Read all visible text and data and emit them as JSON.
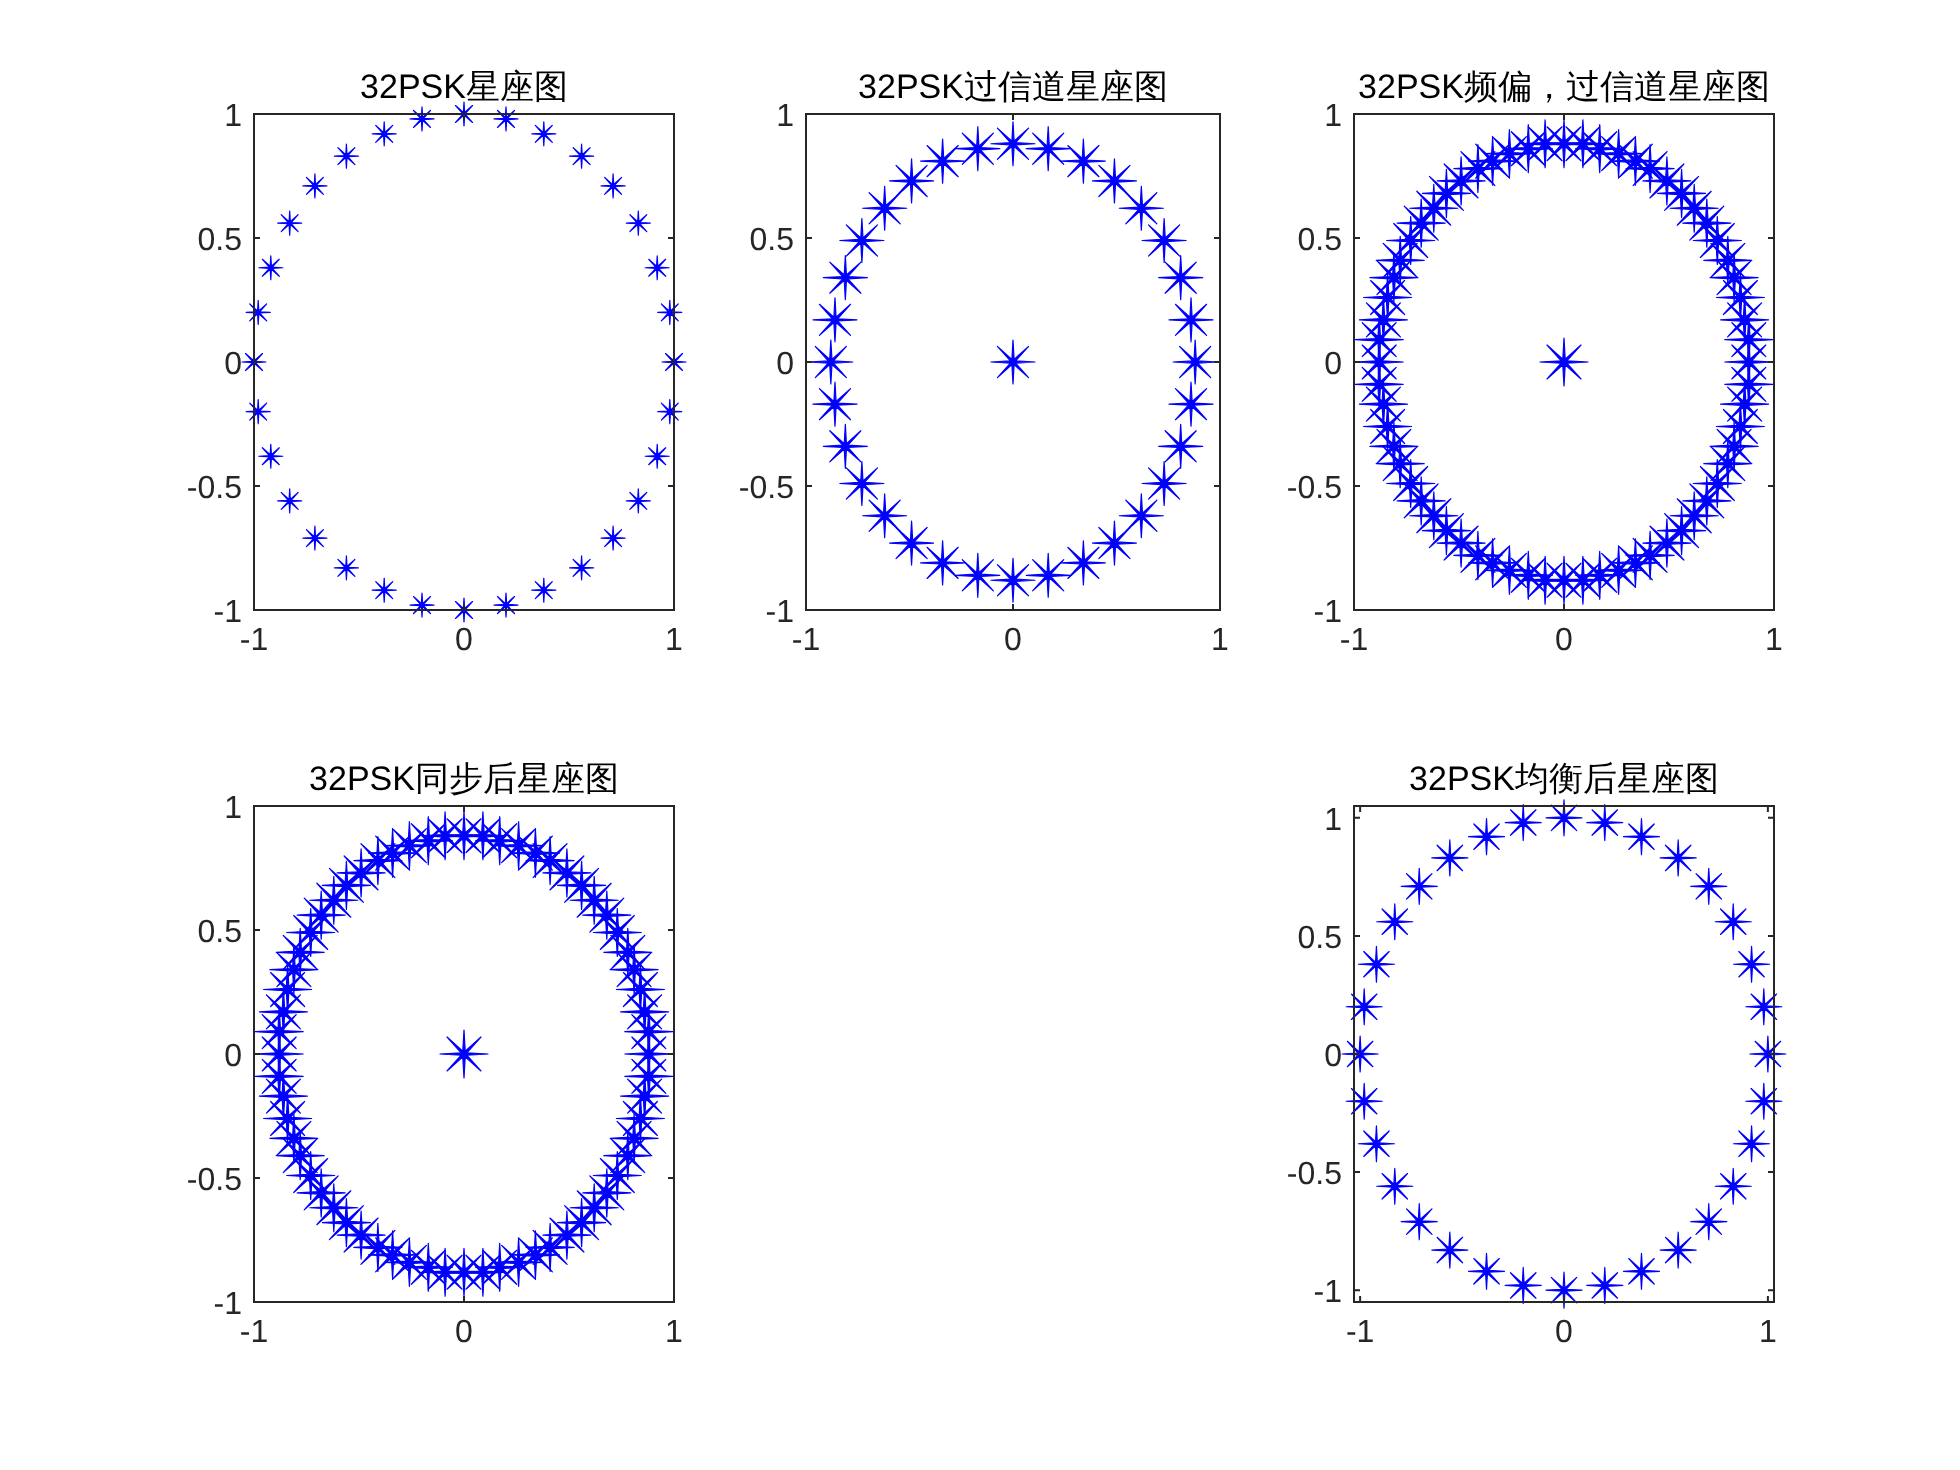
{
  "chart_data": [
    {
      "type": "scatter",
      "title": "32PSK星座图",
      "xlim": [
        -1,
        1
      ],
      "ylim": [
        -1,
        1
      ],
      "xticks": [
        -1,
        0,
        1
      ],
      "yticks": [
        -1,
        -0.5,
        0,
        0.5,
        1
      ],
      "marker": "star",
      "series": [
        {
          "color": "#0000ff",
          "x": [
            1,
            0.98,
            0.92,
            0.83,
            0.71,
            0.56,
            0.38,
            0.2,
            0,
            -0.2,
            -0.38,
            -0.56,
            -0.71,
            -0.83,
            -0.92,
            -0.98,
            -1,
            -0.98,
            -0.92,
            -0.83,
            -0.71,
            -0.56,
            -0.38,
            -0.2,
            0,
            0.2,
            0.38,
            0.56,
            0.71,
            0.83,
            0.92,
            0.98
          ],
          "values": [
            0,
            0.2,
            0.38,
            0.56,
            0.71,
            0.83,
            0.92,
            0.98,
            1,
            0.98,
            0.92,
            0.83,
            0.71,
            0.56,
            0.38,
            0.2,
            0,
            -0.2,
            -0.38,
            -0.56,
            -0.71,
            -0.83,
            -0.92,
            -0.98,
            -1,
            -0.98,
            -0.92,
            -0.83,
            -0.71,
            -0.56,
            -0.38,
            -0.2
          ]
        }
      ]
    },
    {
      "type": "scatter",
      "title": "32PSK过信道星座图",
      "xlim": [
        -1,
        1
      ],
      "ylim": [
        -1,
        1
      ],
      "xticks": [
        -1,
        0,
        1
      ],
      "yticks": [
        -1,
        -0.5,
        0,
        0.5,
        1
      ],
      "marker": "star",
      "series": [
        {
          "color": "#0000ff",
          "x": [
            0.88,
            0.86,
            0.81,
            0.73,
            0.62,
            0.49,
            0.34,
            0.17,
            0,
            -0.17,
            -0.34,
            -0.49,
            -0.62,
            -0.73,
            -0.81,
            -0.86,
            -0.88,
            -0.86,
            -0.81,
            -0.73,
            -0.62,
            -0.49,
            -0.34,
            -0.17,
            0,
            0.17,
            0.34,
            0.49,
            0.62,
            0.73,
            0.81,
            0.86,
            0
          ],
          "values": [
            0,
            0.17,
            0.34,
            0.49,
            0.62,
            0.73,
            0.81,
            0.86,
            0.88,
            0.86,
            0.81,
            0.73,
            0.62,
            0.49,
            0.34,
            0.17,
            0,
            -0.17,
            -0.34,
            -0.49,
            -0.62,
            -0.73,
            -0.81,
            -0.86,
            -0.88,
            -0.86,
            -0.81,
            -0.73,
            -0.62,
            -0.49,
            -0.34,
            -0.17,
            0
          ]
        }
      ]
    },
    {
      "type": "scatter",
      "title": "32PSK频偏，过信道星座图",
      "xlim": [
        -1,
        1
      ],
      "ylim": [
        -1,
        1
      ],
      "xticks": [
        -1,
        0,
        1
      ],
      "yticks": [
        -1,
        -0.5,
        0,
        0.5,
        1
      ],
      "marker": "star",
      "series": [
        {
          "color": "#0000ff",
          "x": [
            0.88,
            0.86,
            0.81,
            0.73,
            0.62,
            0.49,
            0.34,
            0.17,
            0,
            -0.17,
            -0.34,
            -0.49,
            -0.62,
            -0.73,
            -0.81,
            -0.86,
            -0.88,
            -0.86,
            -0.81,
            -0.73,
            -0.62,
            -0.49,
            -0.34,
            -0.17,
            0,
            0.17,
            0.34,
            0.49,
            0.62,
            0.73,
            0.81,
            0.86,
            0.88,
            0.84,
            0.78,
            0.68,
            0.56,
            0.41,
            0.26,
            0.09,
            -0.09,
            -0.26,
            -0.41,
            -0.56,
            -0.68,
            -0.78,
            -0.84,
            -0.88,
            -0.88,
            -0.84,
            -0.78,
            -0.68,
            -0.56,
            -0.41,
            -0.26,
            -0.09,
            0.09,
            0.26,
            0.41,
            0.56,
            0.68,
            0.78,
            0.84,
            0.88,
            0
          ],
          "values": [
            0,
            0.17,
            0.34,
            0.49,
            0.62,
            0.73,
            0.81,
            0.86,
            0.88,
            0.86,
            0.81,
            0.73,
            0.62,
            0.49,
            0.34,
            0.17,
            0,
            -0.17,
            -0.34,
            -0.49,
            -0.62,
            -0.73,
            -0.81,
            -0.86,
            -0.88,
            -0.86,
            -0.81,
            -0.73,
            -0.62,
            -0.49,
            -0.34,
            -0.17,
            0.09,
            0.26,
            0.41,
            0.56,
            0.68,
            0.78,
            0.84,
            0.88,
            0.88,
            0.84,
            0.78,
            0.68,
            0.56,
            0.41,
            0.26,
            0.09,
            -0.09,
            -0.26,
            -0.41,
            -0.56,
            -0.68,
            -0.78,
            -0.84,
            -0.88,
            -0.88,
            -0.84,
            -0.78,
            -0.68,
            -0.56,
            -0.41,
            -0.26,
            -0.09,
            0
          ]
        }
      ]
    },
    {
      "type": "scatter",
      "title": "32PSK同步后星座图",
      "xlim": [
        -1,
        1
      ],
      "ylim": [
        -1,
        1
      ],
      "xticks": [
        -1,
        0,
        1
      ],
      "yticks": [
        -1,
        -0.5,
        0,
        0.5,
        1
      ],
      "marker": "star",
      "series": [
        {
          "color": "#0000ff",
          "x": [
            0.88,
            0.86,
            0.81,
            0.73,
            0.62,
            0.49,
            0.34,
            0.17,
            0,
            -0.17,
            -0.34,
            -0.49,
            -0.62,
            -0.73,
            -0.81,
            -0.86,
            -0.88,
            -0.86,
            -0.81,
            -0.73,
            -0.62,
            -0.49,
            -0.34,
            -0.17,
            0,
            0.17,
            0.34,
            0.49,
            0.62,
            0.73,
            0.81,
            0.86,
            0.88,
            0.84,
            0.78,
            0.68,
            0.56,
            0.41,
            0.26,
            0.09,
            -0.09,
            -0.26,
            -0.41,
            -0.56,
            -0.68,
            -0.78,
            -0.84,
            -0.88,
            -0.88,
            -0.84,
            -0.78,
            -0.68,
            -0.56,
            -0.41,
            -0.26,
            -0.09,
            0.09,
            0.26,
            0.41,
            0.56,
            0.68,
            0.78,
            0.84,
            0.88,
            0
          ],
          "values": [
            0,
            0.17,
            0.34,
            0.49,
            0.62,
            0.73,
            0.81,
            0.86,
            0.88,
            0.86,
            0.81,
            0.73,
            0.62,
            0.49,
            0.34,
            0.17,
            0,
            -0.17,
            -0.34,
            -0.49,
            -0.62,
            -0.73,
            -0.81,
            -0.86,
            -0.88,
            -0.86,
            -0.81,
            -0.73,
            -0.62,
            -0.49,
            -0.34,
            -0.17,
            0.09,
            0.26,
            0.41,
            0.56,
            0.68,
            0.78,
            0.84,
            0.88,
            0.88,
            0.84,
            0.78,
            0.68,
            0.56,
            0.41,
            0.26,
            0.09,
            -0.09,
            -0.26,
            -0.41,
            -0.56,
            -0.68,
            -0.78,
            -0.84,
            -0.88,
            -0.88,
            -0.84,
            -0.78,
            -0.68,
            -0.56,
            -0.41,
            -0.26,
            -0.09,
            0
          ]
        }
      ]
    },
    {
      "type": "scatter",
      "title": "32PSK均衡后星座图",
      "xlim": [
        -1.03,
        1.03
      ],
      "ylim": [
        -1.05,
        1.05
      ],
      "xticks": [
        -1,
        0,
        1
      ],
      "yticks": [
        -1,
        -0.5,
        0,
        0.5,
        1
      ],
      "marker": "star",
      "series": [
        {
          "color": "#0000ff",
          "x": [
            1,
            0.98,
            0.92,
            0.83,
            0.71,
            0.56,
            0.38,
            0.2,
            0,
            -0.2,
            -0.38,
            -0.56,
            -0.71,
            -0.83,
            -0.92,
            -0.98,
            -1,
            -0.98,
            -0.92,
            -0.83,
            -0.71,
            -0.56,
            -0.38,
            -0.2,
            0,
            0.2,
            0.38,
            0.56,
            0.71,
            0.83,
            0.92,
            0.98
          ],
          "values": [
            0,
            0.2,
            0.38,
            0.56,
            0.71,
            0.83,
            0.92,
            0.98,
            1,
            0.98,
            0.92,
            0.83,
            0.71,
            0.56,
            0.38,
            0.2,
            0,
            -0.2,
            -0.38,
            -0.56,
            -0.71,
            -0.83,
            -0.92,
            -0.98,
            -1,
            -0.98,
            -0.92,
            -0.83,
            -0.71,
            -0.56,
            -0.38,
            -0.2
          ]
        }
      ]
    }
  ]
}
